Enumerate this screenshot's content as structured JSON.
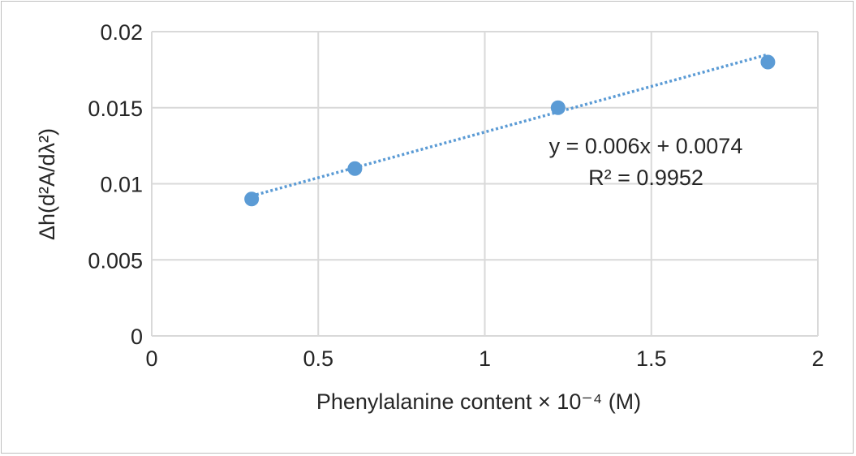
{
  "chart_data": {
    "type": "scatter",
    "title": "",
    "xlabel": "Phenylalanine content × 10⁻⁴ (M)",
    "ylabel": "Δh(d²A/dλ²)",
    "xlim": [
      0,
      2
    ],
    "ylim": [
      0,
      0.02
    ],
    "x_ticks": [
      "0",
      "0.5",
      "1",
      "1.5",
      "2"
    ],
    "y_ticks": [
      "0",
      "0.005",
      "0.01",
      "0.015",
      "0.02"
    ],
    "grid": true,
    "legend": "none",
    "series": [
      {
        "points": [
          {
            "x": 0.3,
            "y": 0.009
          },
          {
            "x": 0.61,
            "y": 0.011
          },
          {
            "x": 1.22,
            "y": 0.015
          },
          {
            "x": 1.85,
            "y": 0.018
          }
        ]
      }
    ],
    "trendline": {
      "type": "linear",
      "slope": 0.006,
      "intercept": 0.0074,
      "style": "dotted",
      "x_range": [
        0.3,
        1.85
      ],
      "equation_label": "y = 0.006x + 0.0074",
      "r2_label": "R² = 0.9952"
    },
    "colors": {
      "marker": "#5b9bd5",
      "trendline": "#5b9bd5",
      "grid": "#d9d9d9",
      "text": "#262626"
    }
  }
}
